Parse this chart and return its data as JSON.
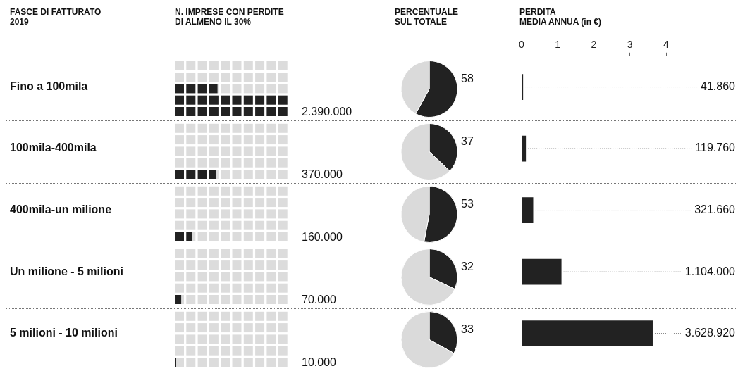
{
  "chart_data": [
    {
      "type": "other",
      "title": "N. IMPRESE CON PERDITE DI ALMENO IL 30%",
      "values": [
        2390000,
        370000,
        160000,
        70000,
        10000
      ],
      "value_labels": [
        "2.390.000",
        "370.000",
        "160.000",
        "70.000",
        "10.000"
      ],
      "color": "#222222"
    },
    {
      "type": "pie",
      "title": "PERCENTUALE SUL TOTALE",
      "categories": [
        null,
        null
      ],
      "values": [
        58,
        42
      ],
      "colors": [
        "#222222",
        "#dadada"
      ],
      "value_labels": [
        "58",
        null
      ]
    },
    {
      "type": "pie",
      "categories": [
        null,
        null
      ],
      "values": [
        37,
        63
      ],
      "colors": [
        "#222222",
        "#dadada"
      ],
      "value_labels": [
        "37",
        null
      ]
    },
    {
      "type": "pie",
      "categories": [
        null,
        null
      ],
      "values": [
        53,
        47
      ],
      "colors": [
        "#222222",
        "#dadada"
      ],
      "value_labels": [
        "53",
        null
      ]
    },
    {
      "type": "pie",
      "categories": [
        null,
        null
      ],
      "values": [
        32,
        68
      ],
      "colors": [
        "#222222",
        "#dadada"
      ],
      "value_labels": [
        "32",
        null
      ]
    },
    {
      "type": "pie",
      "categories": [
        null,
        null
      ],
      "values": [
        33,
        67
      ],
      "colors": [
        "#222222",
        "#dadada"
      ],
      "value_labels": [
        "33",
        null
      ]
    },
    {
      "type": "bar",
      "orientation": "horizontal",
      "title": "PERDITA MEDIA ANNUA (in €)",
      "ylabel": "FASCE DI FATTURATO 2019",
      "categories": [
        "Fino a 100mila",
        "100mila-400mila",
        "400mila-un milione",
        "Un milione - 5 milioni",
        "5 milioni - 10 milioni"
      ],
      "series": [
        {
          "color": "#222222",
          "axis": "x2",
          "values": [
            0.04186,
            0.11976,
            0.32166,
            1.104,
            3.62892
          ]
        }
      ],
      "annotations": [
        "41.860",
        "119.760",
        "321.660",
        "1.104.000",
        "3.628.920"
      ],
      "x2lim": [
        0,
        4
      ],
      "x2ticks": [
        0,
        1,
        2,
        3,
        4
      ],
      "grid": false
    }
  ]
}
